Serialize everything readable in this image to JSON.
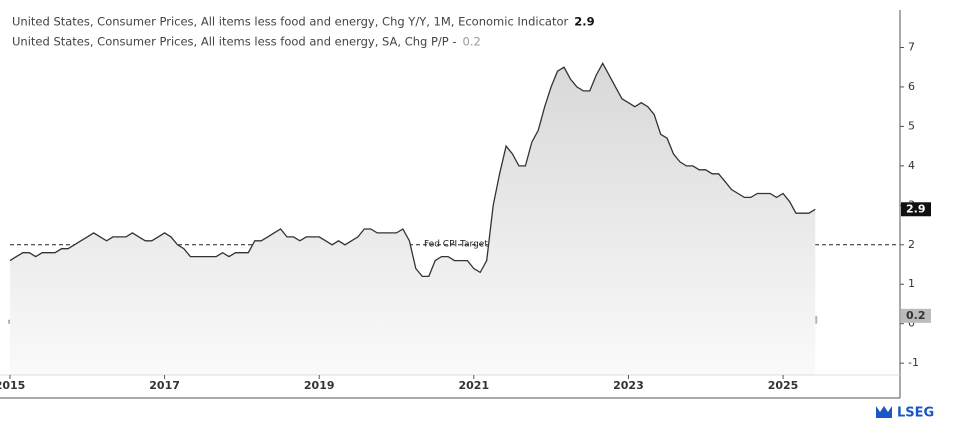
{
  "chart_data": {
    "type": "line",
    "legend": [
      "United States, Consumer Prices, All items less food and energy, Chg Y/Y, 1M, Economic Indicator",
      "United States, Consumer Prices, All items less food and energy, SA, Chg P/P -"
    ],
    "x": [
      2015,
      2015.083,
      2015.167,
      2015.25,
      2015.333,
      2015.417,
      2015.5,
      2015.583,
      2015.667,
      2015.75,
      2015.833,
      2015.917,
      2016,
      2016.083,
      2016.167,
      2016.25,
      2016.333,
      2016.417,
      2016.5,
      2016.583,
      2016.667,
      2016.75,
      2016.833,
      2016.917,
      2017,
      2017.083,
      2017.167,
      2017.25,
      2017.333,
      2017.417,
      2017.5,
      2017.583,
      2017.667,
      2017.75,
      2017.833,
      2017.917,
      2018,
      2018.083,
      2018.167,
      2018.25,
      2018.333,
      2018.417,
      2018.5,
      2018.583,
      2018.667,
      2018.75,
      2018.833,
      2018.917,
      2019,
      2019.083,
      2019.167,
      2019.25,
      2019.333,
      2019.417,
      2019.5,
      2019.583,
      2019.667,
      2019.75,
      2019.833,
      2019.917,
      2020,
      2020.083,
      2020.167,
      2020.25,
      2020.333,
      2020.417,
      2020.5,
      2020.583,
      2020.667,
      2020.75,
      2020.833,
      2020.917,
      2021,
      2021.083,
      2021.167,
      2021.25,
      2021.333,
      2021.417,
      2021.5,
      2021.583,
      2021.667,
      2021.75,
      2021.833,
      2021.917,
      2022,
      2022.083,
      2022.167,
      2022.25,
      2022.333,
      2022.417,
      2022.5,
      2022.583,
      2022.667,
      2022.75,
      2022.833,
      2022.917,
      2023,
      2023.083,
      2023.167,
      2023.25,
      2023.333,
      2023.417,
      2023.5,
      2023.583,
      2023.667,
      2023.75,
      2023.833,
      2023.917,
      2024,
      2024.083,
      2024.167,
      2024.25,
      2024.333,
      2024.417,
      2024.5,
      2024.583,
      2024.667,
      2024.75,
      2024.833,
      2024.917,
      2025,
      2025.083,
      2025.167,
      2025.25,
      2025.333,
      2025.417
    ],
    "series": [
      {
        "name": "Chg Y/Y",
        "type": "line",
        "color": "#333333",
        "values": [
          1.6,
          1.7,
          1.8,
          1.8,
          1.7,
          1.8,
          1.8,
          1.8,
          1.9,
          1.9,
          2.0,
          2.1,
          2.2,
          2.3,
          2.2,
          2.1,
          2.2,
          2.2,
          2.2,
          2.3,
          2.2,
          2.1,
          2.1,
          2.2,
          2.3,
          2.2,
          2.0,
          1.9,
          1.7,
          1.7,
          1.7,
          1.7,
          1.7,
          1.8,
          1.7,
          1.8,
          1.8,
          1.8,
          2.1,
          2.1,
          2.2,
          2.3,
          2.4,
          2.2,
          2.2,
          2.1,
          2.2,
          2.2,
          2.2,
          2.1,
          2.0,
          2.1,
          2.0,
          2.1,
          2.2,
          2.4,
          2.4,
          2.3,
          2.3,
          2.3,
          2.3,
          2.4,
          2.1,
          1.4,
          1.2,
          1.2,
          1.6,
          1.7,
          1.7,
          1.6,
          1.6,
          1.6,
          1.4,
          1.3,
          1.6,
          3.0,
          3.8,
          4.5,
          4.3,
          4.0,
          4.0,
          4.6,
          4.9,
          5.5,
          6.0,
          6.4,
          6.5,
          6.2,
          6.0,
          5.9,
          5.9,
          6.3,
          6.6,
          6.3,
          6.0,
          5.7,
          5.6,
          5.5,
          5.6,
          5.5,
          5.3,
          4.8,
          4.7,
          4.3,
          4.1,
          4.0,
          4.0,
          3.9,
          3.9,
          3.8,
          3.8,
          3.6,
          3.4,
          3.3,
          3.2,
          3.2,
          3.3,
          3.3,
          3.3,
          3.2,
          3.3,
          3.1,
          2.8,
          2.8,
          2.8,
          2.9
        ]
      },
      {
        "name": "Chg P/P",
        "type": "bar",
        "color": "#b3b3b3",
        "values": [
          0.1,
          0.2,
          0.2,
          0.2,
          0.1,
          0.2,
          0.2,
          0.1,
          0.2,
          0.2,
          0.2,
          0.1,
          0.2,
          0.2,
          0.1,
          0.2,
          0.2,
          0.2,
          0.1,
          0.3,
          0.1,
          0.1,
          0.2,
          0.2,
          0.2,
          0.2,
          -0.1,
          0.1,
          0.1,
          0.1,
          0.1,
          0.2,
          0.1,
          0.2,
          0.1,
          0.2,
          0.3,
          0.2,
          0.2,
          0.1,
          0.2,
          0.2,
          0.2,
          0.1,
          0.1,
          0.2,
          0.2,
          0.2,
          0.2,
          0.1,
          0.1,
          0.1,
          0.1,
          0.3,
          0.3,
          0.1,
          0.1,
          0.2,
          0.2,
          0.1,
          0.2,
          0.2,
          -0.1,
          -0.4,
          -0.1,
          0.2,
          0.6,
          0.4,
          0.2,
          0.1,
          0.2,
          0.1,
          0.0,
          0.1,
          0.3,
          0.8,
          0.7,
          0.8,
          0.3,
          0.1,
          0.3,
          0.6,
          0.5,
          0.6,
          0.6,
          0.5,
          0.3,
          0.6,
          0.6,
          0.7,
          0.3,
          0.6,
          0.6,
          0.3,
          0.2,
          0.4,
          0.4,
          0.5,
          0.4,
          0.4,
          0.4,
          0.2,
          0.2,
          0.3,
          0.3,
          0.2,
          0.3,
          0.3,
          0.4,
          0.4,
          0.4,
          0.3,
          0.2,
          0.1,
          0.2,
          0.3,
          0.3,
          0.3,
          0.3,
          0.2,
          0.4,
          0.2,
          0.1,
          0.2,
          0.1,
          0.2
        ]
      }
    ],
    "xlim": [
      2015,
      2026.5
    ],
    "xticks": [
      2015,
      2017,
      2019,
      2021,
      2023,
      2025
    ],
    "ylim": [
      -1.3,
      7.95
    ],
    "yticks": [
      7,
      6,
      5,
      4,
      3,
      2,
      1,
      0,
      -1
    ],
    "annotations": [
      {
        "text": "Fed CPI Target",
        "value": 2
      }
    ]
  },
  "branding": "LSEG"
}
